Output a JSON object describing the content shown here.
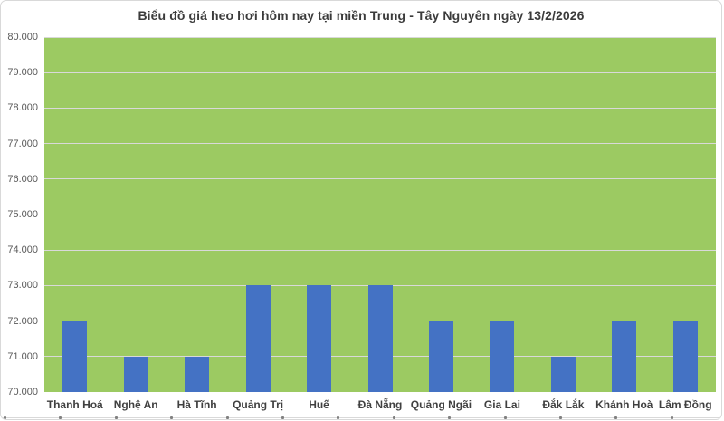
{
  "window": {
    "background": "#ffffff",
    "border_color": "#d9d9d9"
  },
  "chart_data": {
    "type": "bar",
    "title": "Biểu đồ giá heo hơi hôm nay tại miền Trung - Tây Nguyên ngày 13/2/2026",
    "categories": [
      "Thanh Hoá",
      "Nghệ An",
      "Hà Tĩnh",
      "Quảng Trị",
      "Huế",
      "Đà Nẵng",
      "Quảng Ngãi",
      "Gia Lai",
      "Đắk Lắk",
      "Khánh Hoà",
      "Lâm Đồng"
    ],
    "values": [
      72000,
      71000,
      71000,
      73000,
      73000,
      73000,
      72000,
      72000,
      71000,
      72000,
      72000
    ],
    "xlabel": "",
    "ylabel": "",
    "ylim": [
      70000,
      80000
    ],
    "ytick_step": 1000,
    "ytick_labels": [
      "70.000",
      "71.000",
      "72.000",
      "73.000",
      "74.000",
      "75.000",
      "76.000",
      "77.000",
      "78.000",
      "79.000",
      "80.000"
    ],
    "grid": true,
    "legend": false,
    "colors": {
      "bar": "#4472c4",
      "plot_background": "#9cca62",
      "gridline": "#d9d9d9",
      "title": "#3b3b3b",
      "ytick_label": "#595959",
      "xtick_label": "#404040",
      "axis_line": "#d9d9d9",
      "axis_tick": "#808080"
    }
  }
}
